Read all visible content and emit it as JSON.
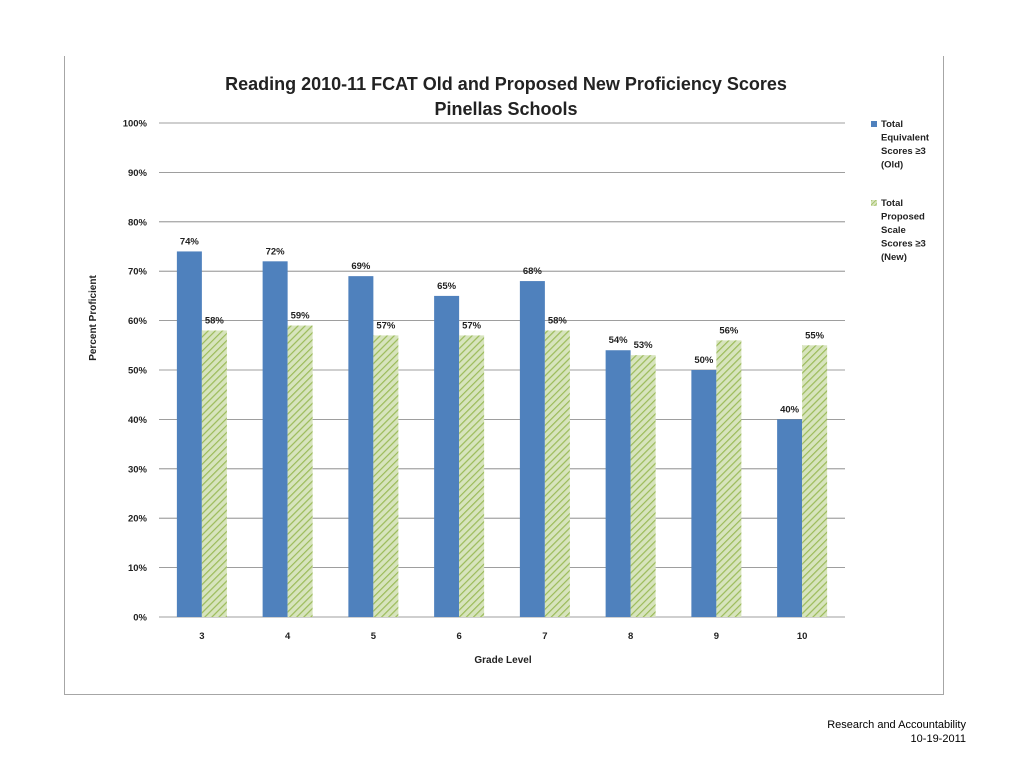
{
  "chart_data": {
    "type": "bar",
    "title": "Reading 2010-11 FCAT Old and Proposed New Proficiency Scores",
    "subtitle": "Pinellas Schools",
    "xlabel": "Grade Level",
    "ylabel": "Percent Proficient",
    "categories": [
      "3",
      "4",
      "5",
      "6",
      "7",
      "8",
      "9",
      "10"
    ],
    "ylim": [
      0,
      100
    ],
    "yticks": [
      "0%",
      "10%",
      "20%",
      "30%",
      "40%",
      "50%",
      "60%",
      "70%",
      "80%",
      "90%",
      "100%"
    ],
    "grid": true,
    "legend_position": "right",
    "series": [
      {
        "name": "Total Equivalent Scores ≥3 (Old)",
        "values": [
          74,
          72,
          69,
          65,
          68,
          54,
          50,
          40
        ],
        "labels": [
          "74%",
          "72%",
          "69%",
          "65%",
          "68%",
          "54%",
          "50%",
          "40%"
        ],
        "color": "#4f81bd"
      },
      {
        "name": "Total Proposed Scale Scores ≥3 (New)",
        "values": [
          58,
          59,
          57,
          57,
          58,
          53,
          56,
          55
        ],
        "labels": [
          "58%",
          "59%",
          "57%",
          "57%",
          "58%",
          "53%",
          "56%",
          "55%"
        ],
        "color": "#9bbb59"
      }
    ]
  },
  "footer": {
    "line1": "Research and Accountability",
    "line2": "10-19-2011"
  }
}
